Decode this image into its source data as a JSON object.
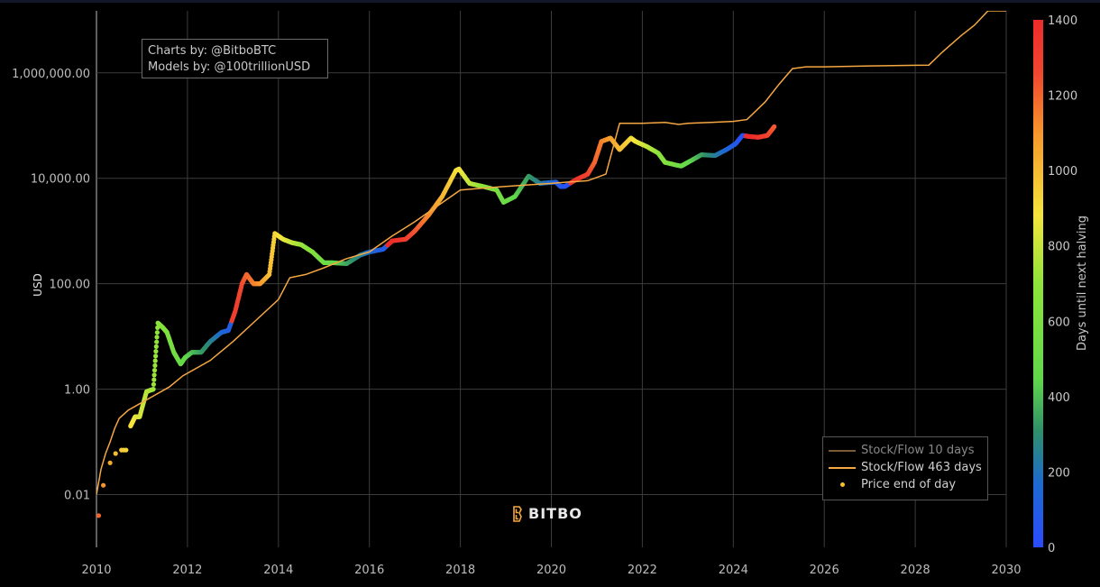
{
  "credits": {
    "line1": "Charts by: @BitboBTC",
    "line2": "Models by: @100trillionUSD"
  },
  "logo": {
    "text": "BITBO",
    "color": "#f5a742"
  },
  "legend": {
    "entries": [
      {
        "label": "Stock/Flow 10 days",
        "style": "line",
        "color": "#7a5a35",
        "muted": true
      },
      {
        "label": "Stock/Flow 463 days",
        "style": "line",
        "color": "#f5a742"
      },
      {
        "label": "Price end of day",
        "style": "marker",
        "color": "#f7c02a"
      }
    ]
  },
  "chart_data": {
    "type": "scatter",
    "title": "",
    "xlabel": "",
    "ylabel": "USD",
    "y_scale": "log",
    "xlim": [
      2010,
      2030
    ],
    "ylim": [
      0.001,
      15000000
    ],
    "x_ticks": [
      "2010",
      "2012",
      "2014",
      "2016",
      "2018",
      "2020",
      "2022",
      "2024",
      "2026",
      "2028",
      "2030"
    ],
    "y_ticks": [
      {
        "value": 0.01,
        "label": "0.01"
      },
      {
        "value": 1,
        "label": "1.00"
      },
      {
        "value": 100,
        "label": "100.00"
      },
      {
        "value": 10000,
        "label": "10,000.00"
      },
      {
        "value": 1000000,
        "label": "1,000,000.00"
      }
    ],
    "grid": true,
    "legend_position": "bottom-right",
    "colorbar": {
      "title": "Days until next halving",
      "range": [
        0,
        1400
      ],
      "ticks": [
        0,
        200,
        400,
        600,
        800,
        1000,
        1200,
        1400
      ],
      "colors": [
        "#2b4bff",
        "#1d6ad0",
        "#2f8f6a",
        "#60d84a",
        "#8ee43a",
        "#f5e53c",
        "#f79a2c",
        "#f0452f",
        "#ee2b2b"
      ]
    },
    "series": [
      {
        "name": "Stock/Flow 463 days",
        "style": "line",
        "color": "#f5a742",
        "x": [
          2010.0,
          2010.1,
          2010.2,
          2010.3,
          2010.4,
          2010.5,
          2010.7,
          2010.9,
          2011.2,
          2011.6,
          2011.9,
          2012.5,
          2013.0,
          2013.5,
          2014.0,
          2014.25,
          2014.6,
          2015.0,
          2015.5,
          2016.0,
          2016.5,
          2017.0,
          2017.5,
          2018.0,
          2018.5,
          2019.0,
          2019.5,
          2020.0,
          2020.4,
          2020.8,
          2021.2,
          2021.5,
          2022.0,
          2022.5,
          2022.8,
          2023.0,
          2023.5,
          2024.0,
          2024.3,
          2024.7,
          2025.0,
          2025.3,
          2025.6,
          2026.0,
          2027.0,
          2028.3,
          2028.6,
          2029.0,
          2029.3,
          2029.6,
          2030.0
        ],
        "y": [
          0.01,
          0.03,
          0.06,
          0.1,
          0.18,
          0.28,
          0.4,
          0.5,
          0.7,
          1.1,
          1.8,
          3.5,
          8,
          20,
          50,
          130,
          150,
          200,
          300,
          400,
          800,
          1500,
          3000,
          6000,
          6500,
          7000,
          7500,
          8000,
          8500,
          9000,
          12000,
          110000,
          110000,
          115000,
          105000,
          110000,
          115000,
          120000,
          130000,
          280000,
          600000,
          1200000,
          1300000,
          1300000,
          1350000,
          1400000,
          2500000,
          5000000,
          8000000,
          15000000,
          15000000
        ]
      },
      {
        "name": "Price end of day",
        "style": "marker",
        "color_by": "days until next halving",
        "x": [
          2010.05,
          2010.15,
          2010.3,
          2010.42,
          2010.55,
          2010.6,
          2010.65,
          2010.75,
          2010.85,
          2010.95,
          2011.1,
          2011.25,
          2011.35,
          2011.45,
          2011.55,
          2011.7,
          2011.85,
          2011.95,
          2012.1,
          2012.3,
          2012.5,
          2012.75,
          2012.9,
          2013.05,
          2013.2,
          2013.3,
          2013.45,
          2013.6,
          2013.8,
          2013.92,
          2014.1,
          2014.3,
          2014.5,
          2014.75,
          2015.0,
          2015.2,
          2015.5,
          2015.8,
          2016.0,
          2016.3,
          2016.5,
          2016.8,
          2017.0,
          2017.3,
          2017.6,
          2017.9,
          2017.97,
          2018.2,
          2018.5,
          2018.8,
          2018.95,
          2019.2,
          2019.5,
          2019.75,
          2020.1,
          2020.2,
          2020.3,
          2020.55,
          2020.8,
          2020.95,
          2021.1,
          2021.3,
          2021.5,
          2021.75,
          2021.85,
          2022.1,
          2022.35,
          2022.5,
          2022.85,
          2023.0,
          2023.3,
          2023.6,
          2023.85,
          2024.05,
          2024.2,
          2024.35,
          2024.55,
          2024.75,
          2024.9
        ],
        "y": [
          0.004,
          0.015,
          0.04,
          0.06,
          0.07,
          0.07,
          0.07,
          0.2,
          0.3,
          0.3,
          0.9,
          1,
          18,
          15,
          12,
          5,
          3,
          4,
          5,
          5,
          8,
          12,
          13,
          30,
          100,
          150,
          100,
          100,
          150,
          900,
          700,
          600,
          550,
          400,
          250,
          250,
          240,
          350,
          400,
          450,
          650,
          700,
          1000,
          2000,
          4500,
          14000,
          15000,
          8000,
          7000,
          6000,
          3500,
          4500,
          11000,
          8000,
          8500,
          7000,
          7000,
          9500,
          12000,
          20000,
          50000,
          58000,
          35000,
          58000,
          50000,
          40000,
          30000,
          20000,
          17000,
          20000,
          28000,
          27000,
          35000,
          45000,
          65000,
          62000,
          60000,
          65000,
          95000
        ],
        "days_until_halving": [
          1200,
          1100,
          1050,
          1000,
          960,
          940,
          930,
          900,
          870,
          830,
          780,
          730,
          700,
          660,
          620,
          560,
          500,
          460,
          410,
          340,
          270,
          170,
          110,
          1300,
          1250,
          1200,
          1150,
          1100,
          1000,
          930,
          870,
          800,
          730,
          640,
          540,
          470,
          360,
          260,
          180,
          90,
          1400,
          1300,
          1230,
          1130,
          1020,
          910,
          890,
          800,
          690,
          580,
          530,
          450,
          340,
          250,
          120,
          80,
          40,
          1360,
          1270,
          1200,
          1150,
          1080,
          1000,
          920,
          880,
          800,
          700,
          640,
          520,
          470,
          350,
          250,
          150,
          80,
          30,
          1420,
          1340,
          1270,
          1220
        ]
      }
    ]
  }
}
